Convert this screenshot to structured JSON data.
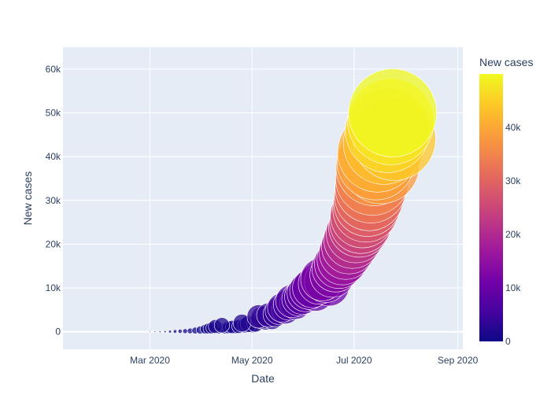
{
  "chart_data": {
    "type": "scatter",
    "variant": "bubble",
    "xlabel": "Date",
    "ylabel": "New cases",
    "x_ticks": [
      {
        "date": "2020-03-01",
        "label": "Mar 2020"
      },
      {
        "date": "2020-05-01",
        "label": "May 2020"
      },
      {
        "date": "2020-07-01",
        "label": "Jul 2020"
      },
      {
        "date": "2020-09-01",
        "label": "Sep 2020"
      }
    ],
    "y_ticks": [
      {
        "value": 0,
        "label": "0"
      },
      {
        "value": 10000,
        "label": "10k"
      },
      {
        "value": 20000,
        "label": "20k"
      },
      {
        "value": 30000,
        "label": "30k"
      },
      {
        "value": 40000,
        "label": "40k"
      },
      {
        "value": 50000,
        "label": "50k"
      },
      {
        "value": 60000,
        "label": "60k"
      }
    ],
    "xlim": [
      "2020-01-09",
      "2020-09-04"
    ],
    "ylim": [
      -4000,
      65000
    ],
    "grid": true,
    "colorbar": {
      "title": "New cases",
      "range": [
        0,
        50000
      ],
      "ticks": [
        {
          "value": 0,
          "label": "0"
        },
        {
          "value": 10000,
          "label": "10k"
        },
        {
          "value": 20000,
          "label": "20k"
        },
        {
          "value": 30000,
          "label": "30k"
        },
        {
          "value": 40000,
          "label": "40k"
        }
      ],
      "colorscale": [
        "#0d0887",
        "#46039f",
        "#7201a8",
        "#9c179e",
        "#bd3786",
        "#d8576b",
        "#ed7953",
        "#fb9f3a",
        "#fdca26",
        "#f0f921"
      ]
    },
    "size_encodes": "New cases",
    "color_encodes": "New cases",
    "points": [
      {
        "date": "2020-03-01",
        "value": 10
      },
      {
        "date": "2020-03-04",
        "value": 15
      },
      {
        "date": "2020-03-07",
        "value": 20
      },
      {
        "date": "2020-03-10",
        "value": 30
      },
      {
        "date": "2020-03-13",
        "value": 50
      },
      {
        "date": "2020-03-16",
        "value": 80
      },
      {
        "date": "2020-03-19",
        "value": 110
      },
      {
        "date": "2020-03-22",
        "value": 150
      },
      {
        "date": "2020-03-25",
        "value": 200
      },
      {
        "date": "2020-03-28",
        "value": 280
      },
      {
        "date": "2020-03-31",
        "value": 400
      },
      {
        "date": "2020-04-03",
        "value": 600
      },
      {
        "date": "2020-04-05",
        "value": 750
      },
      {
        "date": "2020-04-07",
        "value": 900
      },
      {
        "date": "2020-04-09",
        "value": 1200
      },
      {
        "date": "2020-04-11",
        "value": 300
      },
      {
        "date": "2020-04-13",
        "value": 1500
      },
      {
        "date": "2020-04-15",
        "value": 800
      },
      {
        "date": "2020-04-17",
        "value": 1000
      },
      {
        "date": "2020-04-19",
        "value": 1100
      },
      {
        "date": "2020-04-21",
        "value": 900
      },
      {
        "date": "2020-04-23",
        "value": 1200
      },
      {
        "date": "2020-04-25",
        "value": 2000
      },
      {
        "date": "2020-04-27",
        "value": 1500
      },
      {
        "date": "2020-04-29",
        "value": 1800
      },
      {
        "date": "2020-05-01",
        "value": 1600
      },
      {
        "date": "2020-05-03",
        "value": 1900
      },
      {
        "date": "2020-05-05",
        "value": 3500
      },
      {
        "date": "2020-05-07",
        "value": 3200
      },
      {
        "date": "2020-05-09",
        "value": 2800
      },
      {
        "date": "2020-05-11",
        "value": 3800
      },
      {
        "date": "2020-05-13",
        "value": 3000
      },
      {
        "date": "2020-05-15",
        "value": 4000
      },
      {
        "date": "2020-05-17",
        "value": 4800
      },
      {
        "date": "2020-05-19",
        "value": 5500
      },
      {
        "date": "2020-05-21",
        "value": 5000
      },
      {
        "date": "2020-05-23",
        "value": 6200
      },
      {
        "date": "2020-05-25",
        "value": 7000
      },
      {
        "date": "2020-05-27",
        "value": 6500
      },
      {
        "date": "2020-05-29",
        "value": 7500
      },
      {
        "date": "2020-05-31",
        "value": 8000
      },
      {
        "date": "2020-06-02",
        "value": 8800
      },
      {
        "date": "2020-06-04",
        "value": 9500
      },
      {
        "date": "2020-06-06",
        "value": 10000
      },
      {
        "date": "2020-06-08",
        "value": 9000
      },
      {
        "date": "2020-06-10",
        "value": 11000
      },
      {
        "date": "2020-06-12",
        "value": 12000
      },
      {
        "date": "2020-06-14",
        "value": 11500
      },
      {
        "date": "2020-06-16",
        "value": 10500
      },
      {
        "date": "2020-06-18",
        "value": 13000
      },
      {
        "date": "2020-06-20",
        "value": 14500
      },
      {
        "date": "2020-06-22",
        "value": 15500
      },
      {
        "date": "2020-06-24",
        "value": 16500
      },
      {
        "date": "2020-06-26",
        "value": 18000
      },
      {
        "date": "2020-06-28",
        "value": 19500
      },
      {
        "date": "2020-06-30",
        "value": 21000
      },
      {
        "date": "2020-07-02",
        "value": 22500
      },
      {
        "date": "2020-07-04",
        "value": 24000
      },
      {
        "date": "2020-07-05",
        "value": 25000
      },
      {
        "date": "2020-07-06",
        "value": 26500
      },
      {
        "date": "2020-07-08",
        "value": 28000
      },
      {
        "date": "2020-07-09",
        "value": 29500
      },
      {
        "date": "2020-07-10",
        "value": 31000
      },
      {
        "date": "2020-07-11",
        "value": 33000
      },
      {
        "date": "2020-07-12",
        "value": 35000
      },
      {
        "date": "2020-07-13",
        "value": 37500
      },
      {
        "date": "2020-07-14",
        "value": 39000
      },
      {
        "date": "2020-07-15",
        "value": 41000
      },
      {
        "date": "2020-07-17",
        "value": 38000
      },
      {
        "date": "2020-07-19",
        "value": 43000
      },
      {
        "date": "2020-07-21",
        "value": 46000
      },
      {
        "date": "2020-07-23",
        "value": 48000
      },
      {
        "date": "2020-07-24",
        "value": 50000
      },
      {
        "date": "2020-07-25",
        "value": 44000
      }
    ]
  }
}
